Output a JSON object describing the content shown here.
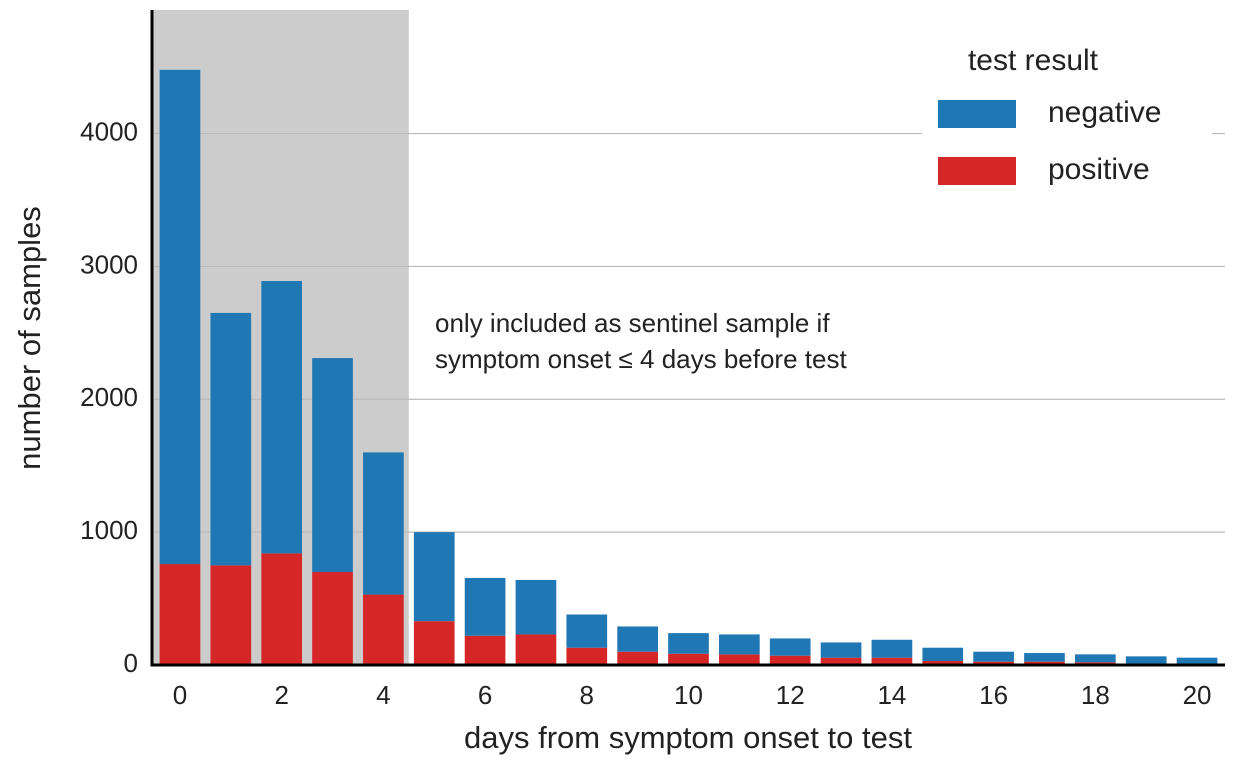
{
  "chart_data": {
    "type": "stacked_bar",
    "xlabel": "days from symptom onset to test",
    "ylabel": "number of samples",
    "x": [
      0,
      1,
      2,
      3,
      4,
      5,
      6,
      7,
      8,
      9,
      10,
      11,
      12,
      13,
      14,
      15,
      16,
      17,
      18,
      19,
      20
    ],
    "series": [
      {
        "name": "negative",
        "color": "#1f77b4",
        "values": [
          3720,
          1900,
          2050,
          1610,
          1070,
          670,
          435,
          410,
          250,
          190,
          155,
          150,
          130,
          115,
          135,
          100,
          75,
          65,
          60,
          55,
          50
        ]
      },
      {
        "name": "positive",
        "color": "#d62728",
        "values": [
          760,
          750,
          840,
          700,
          530,
          330,
          220,
          230,
          130,
          100,
          85,
          80,
          70,
          55,
          55,
          30,
          25,
          25,
          20,
          10,
          5
        ]
      }
    ],
    "xlim": [
      -0.55,
      20.55
    ],
    "xticks": [
      0,
      2,
      4,
      6,
      8,
      10,
      12,
      14,
      16,
      18,
      20
    ],
    "ylim": [
      0,
      4930
    ],
    "yticks": [
      0,
      1000,
      2000,
      3000,
      4000
    ],
    "grid": true,
    "highlight_span": [
      -0.55,
      4.5
    ],
    "highlight_color": "#cccccc",
    "annotation": [
      "only included as sentinel sample if",
      "symptom onset  ≤ 4 days before test"
    ],
    "legend_title": "test result",
    "legend": "upper right"
  }
}
